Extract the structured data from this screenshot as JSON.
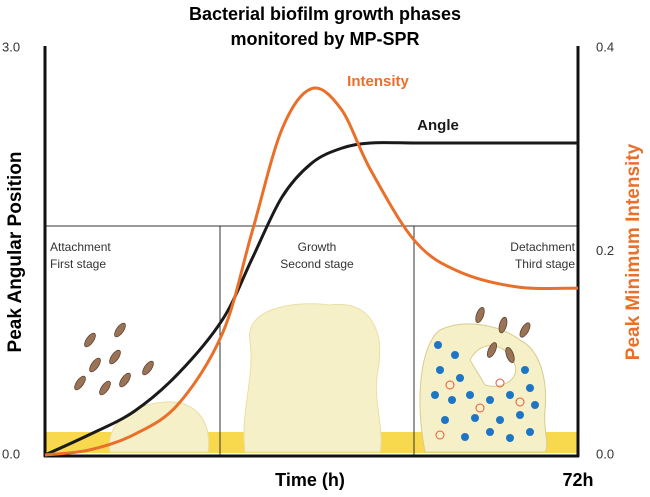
{
  "chart_data": {
    "type": "line",
    "title": [
      "Bacterial biofilm growth phases",
      "monitored by MP-SPR"
    ],
    "xlabel": "Time (h)",
    "ylabel": "Peak Angular Position",
    "y2label": "Peak Minimum Intensity",
    "x": [
      0,
      6,
      12,
      18,
      24,
      28,
      32,
      36,
      40,
      44,
      50,
      56,
      64,
      72
    ],
    "series": [
      {
        "name": "Angle",
        "color": "#1a1a1a",
        "values": [
          0,
          0.15,
          0.32,
          0.6,
          1.0,
          1.45,
          1.9,
          2.15,
          2.26,
          2.3,
          2.3,
          2.3,
          2.3,
          2.3
        ]
      },
      {
        "name": "Intensity",
        "color": "#e8702a",
        "axis": "y2",
        "values": [
          0,
          0.005,
          0.02,
          0.05,
          0.12,
          0.22,
          0.32,
          0.36,
          0.34,
          0.28,
          0.21,
          0.18,
          0.165,
          0.164
        ]
      }
    ],
    "xlim": [
      0,
      72
    ],
    "xticks": [
      {
        "value": 72,
        "label": "72h"
      }
    ],
    "ylim": [
      0,
      3
    ],
    "yticks": [
      {
        "value": 0,
        "label": "0.0"
      },
      {
        "value": 3,
        "label": "3.0"
      }
    ],
    "y2lim": [
      0,
      0.4
    ],
    "y2ticks": [
      {
        "value": 0,
        "label": "0.0"
      },
      {
        "value": 0.2,
        "label": "0.2"
      },
      {
        "value": 0.4,
        "label": "0.4"
      }
    ],
    "annotations": [
      "Attachment",
      "First stage",
      "Growth",
      "Second stage",
      "Detachment",
      "Third stage"
    ]
  }
}
